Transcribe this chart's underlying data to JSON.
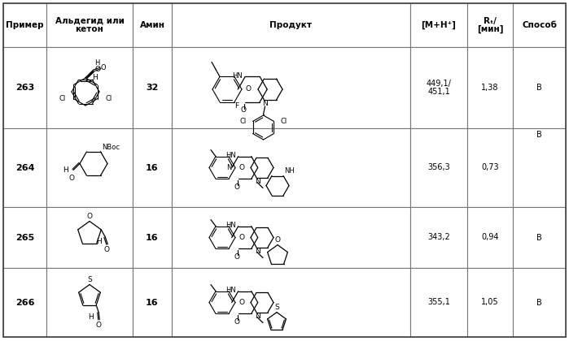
{
  "col_starts": [
    4,
    57,
    163,
    211,
    504,
    574,
    630
  ],
  "col_ends": [
    57,
    163,
    211,
    504,
    574,
    630,
    695
  ],
  "row_tops": [
    4,
    58,
    158,
    255,
    330,
    415
  ],
  "examples": [
    "263",
    "264",
    "265",
    "266"
  ],
  "amines": [
    "32",
    "16",
    "16",
    "16"
  ],
  "mh_vals": [
    "449,1/\n451,1",
    "356,3",
    "343,2",
    "355,1"
  ],
  "rt_vals": [
    "1,38",
    "0,73",
    "0,94",
    "1,05"
  ],
  "methods": [
    "B",
    "B",
    "B",
    "B"
  ],
  "method264_top": true
}
